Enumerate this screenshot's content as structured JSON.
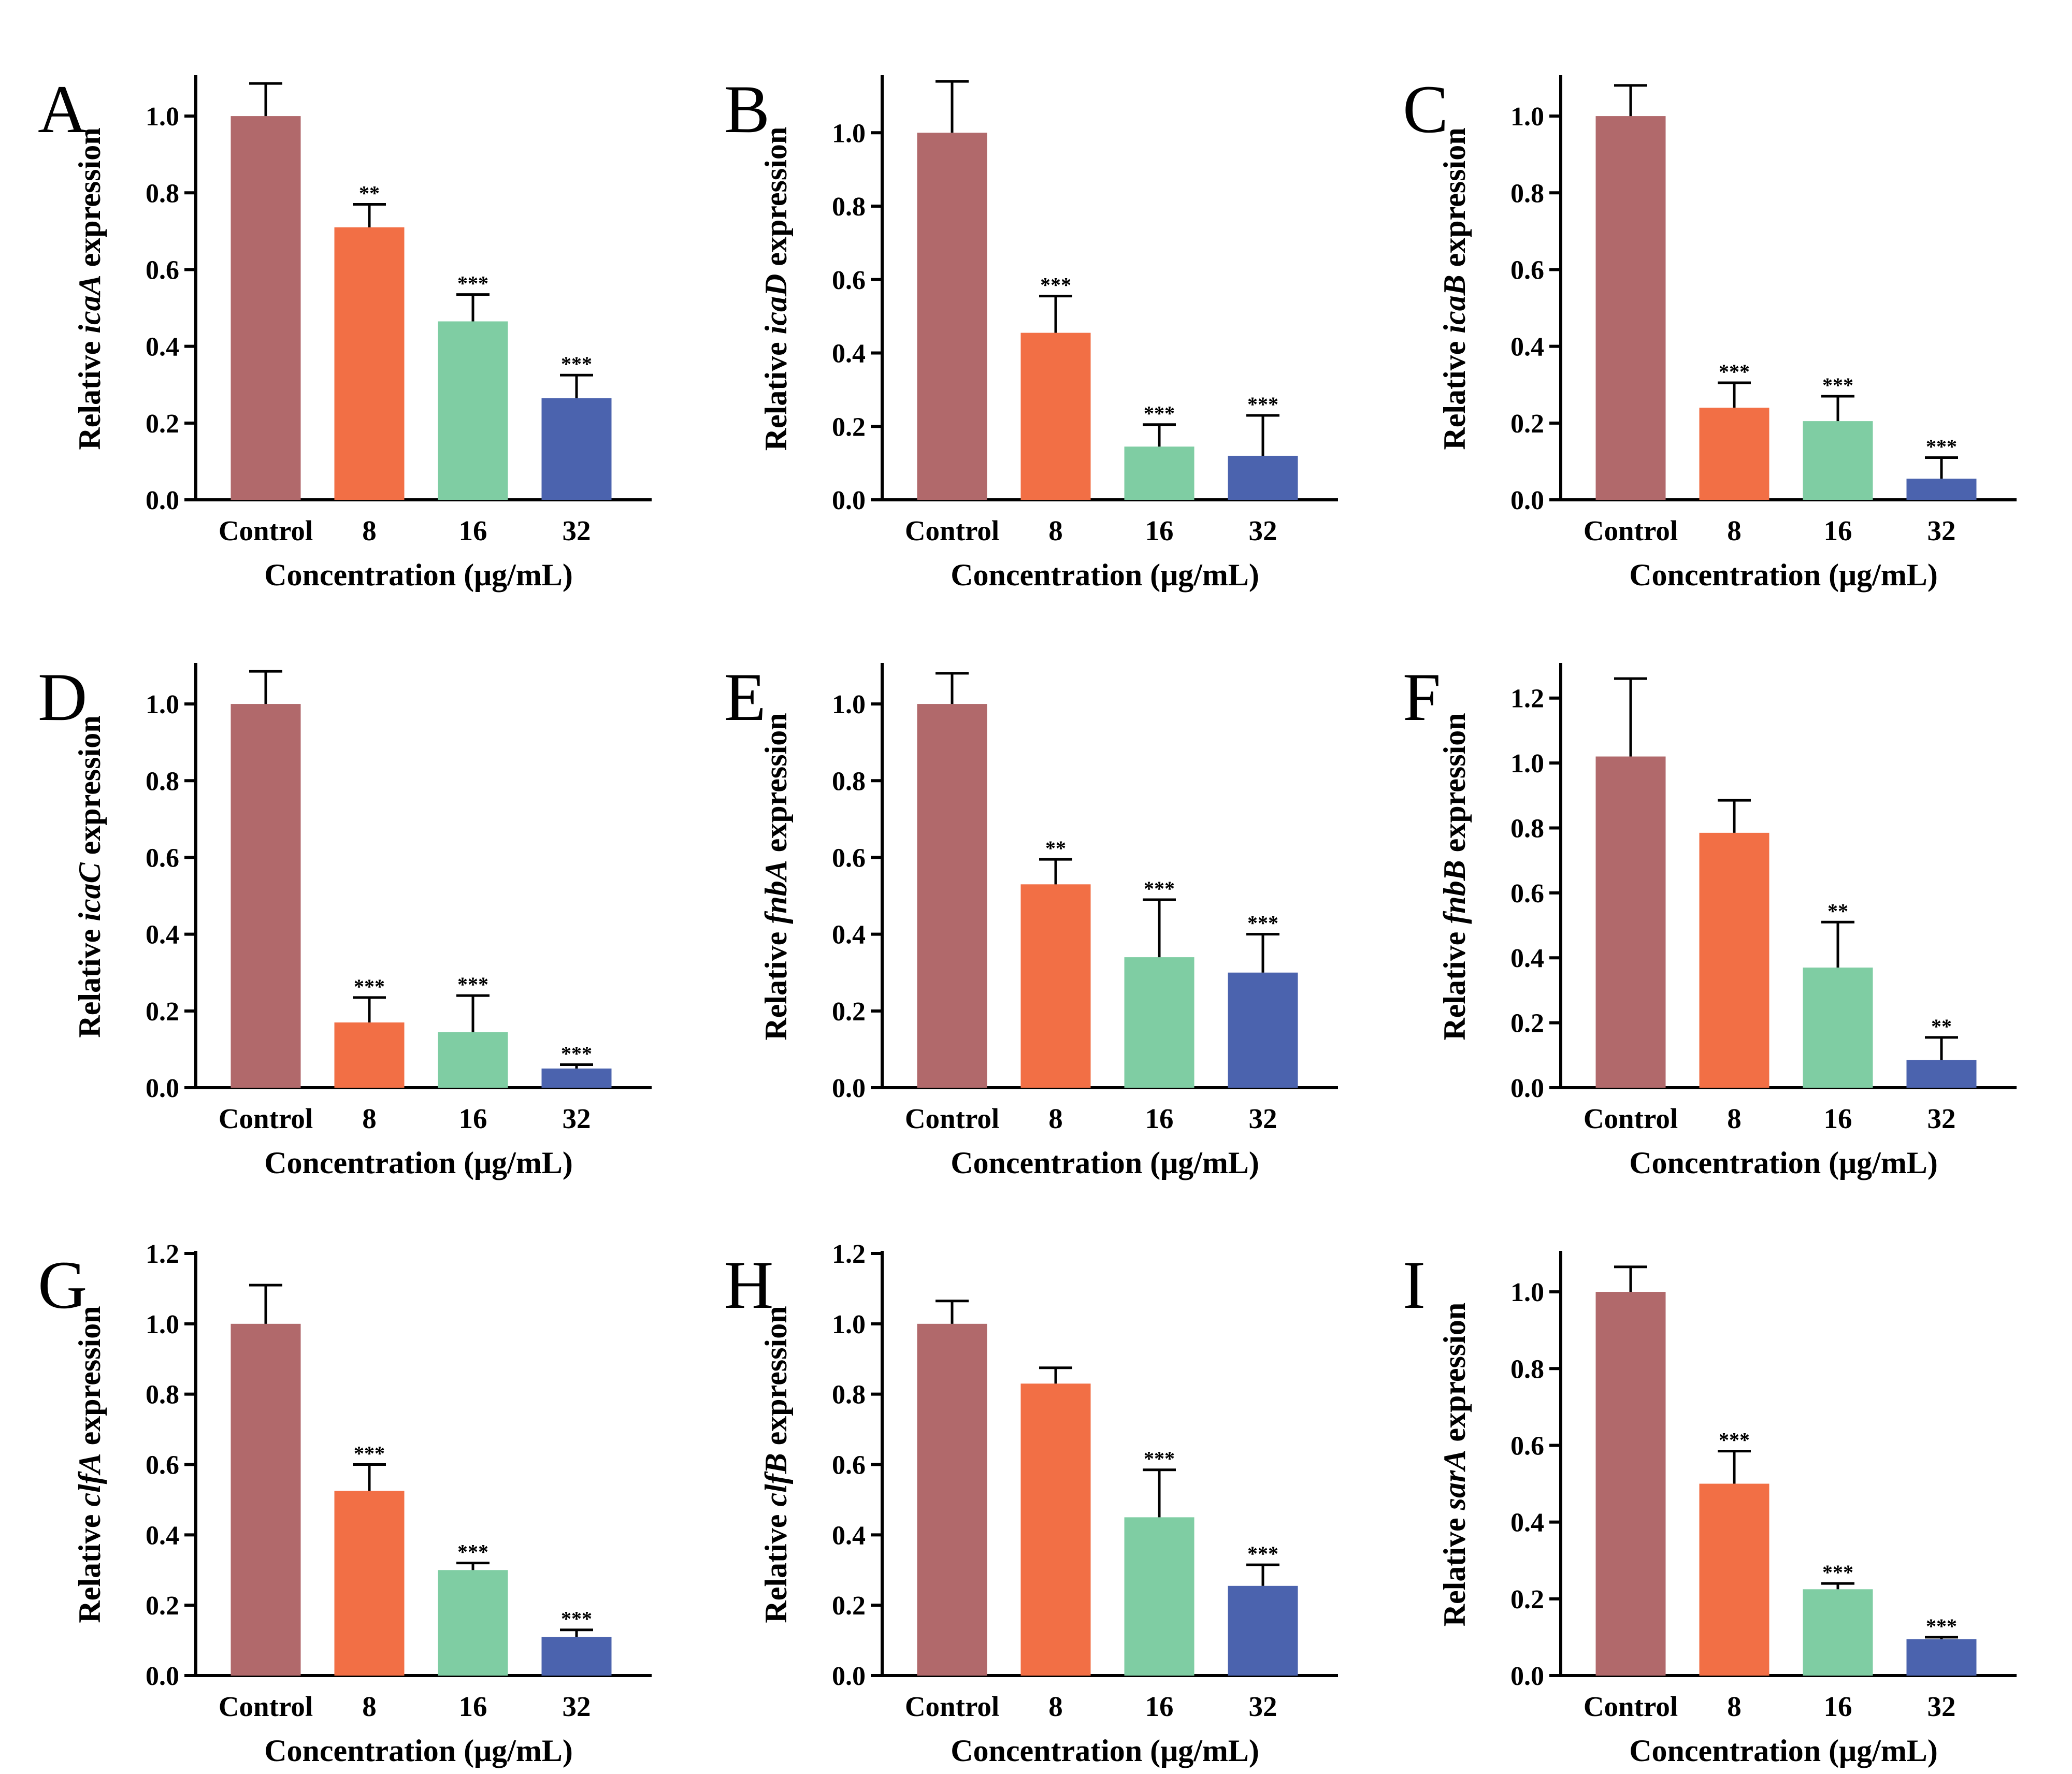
{
  "figure": {
    "ylabel_prefix": "Relative",
    "ylabel_suffix": "expression",
    "xlabel": "Concentration (μg/mL)",
    "categories": [
      "Control",
      "8",
      "16",
      "32"
    ],
    "colors": [
      "#B1696B",
      "#F26F45",
      "#7FCDA3",
      "#4B63AE"
    ]
  },
  "chart_data": [
    {
      "type": "bar",
      "panel": "A",
      "gene": "icaA",
      "categories": [
        "Control",
        "8",
        "16",
        "32"
      ],
      "values": [
        1.0,
        0.71,
        0.465,
        0.265
      ],
      "errors": [
        0.085,
        0.06,
        0.07,
        0.06
      ],
      "significance": [
        "",
        "**",
        "***",
        "***"
      ],
      "ylim": [
        0,
        1.1
      ],
      "yticks": [
        0.0,
        0.2,
        0.4,
        0.6,
        0.8,
        1.0
      ],
      "xlabel": "Concentration (μg/mL)",
      "ylabel": "Relative icaA expression"
    },
    {
      "type": "bar",
      "panel": "B",
      "gene": "icaD",
      "categories": [
        "Control",
        "8",
        "16",
        "32"
      ],
      "values": [
        1.0,
        0.455,
        0.145,
        0.12
      ],
      "errors": [
        0.14,
        0.1,
        0.06,
        0.11
      ],
      "significance": [
        "",
        "***",
        "***",
        "***"
      ],
      "ylim": [
        0,
        1.15
      ],
      "yticks": [
        0.0,
        0.2,
        0.4,
        0.6,
        0.8,
        1.0
      ],
      "xlabel": "Concentration (μg/mL)",
      "ylabel": "Relative icaD expression"
    },
    {
      "type": "bar",
      "panel": "C",
      "gene": "icaB",
      "categories": [
        "Control",
        "8",
        "16",
        "32"
      ],
      "values": [
        1.0,
        0.24,
        0.205,
        0.055
      ],
      "errors": [
        0.08,
        0.065,
        0.065,
        0.055
      ],
      "significance": [
        "",
        "***",
        "***",
        "***"
      ],
      "ylim": [
        0,
        1.1
      ],
      "yticks": [
        0.0,
        0.2,
        0.4,
        0.6,
        0.8,
        1.0
      ],
      "xlabel": "Concentration (μg/mL)",
      "ylabel": "Relative icaB expression"
    },
    {
      "type": "bar",
      "panel": "D",
      "gene": "icaC",
      "categories": [
        "Control",
        "8",
        "16",
        "32"
      ],
      "values": [
        1.0,
        0.17,
        0.145,
        0.05
      ],
      "errors": [
        0.085,
        0.065,
        0.095,
        0.01
      ],
      "significance": [
        "",
        "***",
        "***",
        "***"
      ],
      "ylim": [
        0,
        1.1
      ],
      "yticks": [
        0.0,
        0.2,
        0.4,
        0.6,
        0.8,
        1.0
      ],
      "xlabel": "Concentration (μg/mL)",
      "ylabel": "Relative icaC expression"
    },
    {
      "type": "bar",
      "panel": "E",
      "gene": "fnbA",
      "categories": [
        "Control",
        "8",
        "16",
        "32"
      ],
      "values": [
        1.0,
        0.53,
        0.34,
        0.3
      ],
      "errors": [
        0.08,
        0.065,
        0.15,
        0.1
      ],
      "significance": [
        "",
        "**",
        "***",
        "***"
      ],
      "ylim": [
        0,
        1.1
      ],
      "yticks": [
        0.0,
        0.2,
        0.4,
        0.6,
        0.8,
        1.0
      ],
      "xlabel": "Concentration (μg/mL)",
      "ylabel": "Relative fnbA expression"
    },
    {
      "type": "bar",
      "panel": "F",
      "gene": "fnbB",
      "categories": [
        "Control",
        "8",
        "16",
        "32"
      ],
      "values": [
        1.02,
        0.785,
        0.37,
        0.085
      ],
      "errors": [
        0.24,
        0.1,
        0.14,
        0.07
      ],
      "significance": [
        "",
        "",
        "**",
        "**"
      ],
      "ylim": [
        0,
        1.3
      ],
      "yticks": [
        0.0,
        0.2,
        0.4,
        0.6,
        0.8,
        1.0,
        1.2
      ],
      "xlabel": "Concentration (μg/mL)",
      "ylabel": "Relative fnbB expression"
    },
    {
      "type": "bar",
      "panel": "G",
      "gene": "clfA",
      "categories": [
        "Control",
        "8",
        "16",
        "32"
      ],
      "values": [
        1.0,
        0.525,
        0.3,
        0.11
      ],
      "errors": [
        0.11,
        0.075,
        0.02,
        0.02
      ],
      "significance": [
        "",
        "***",
        "***",
        "***"
      ],
      "ylim": [
        0,
        1.2
      ],
      "yticks": [
        0.0,
        0.2,
        0.4,
        0.6,
        0.8,
        1.0,
        1.2
      ],
      "xlabel": "Concentration (μg/mL)",
      "ylabel": "Relative clfA expression"
    },
    {
      "type": "bar",
      "panel": "H",
      "gene": "clfB",
      "categories": [
        "Control",
        "8",
        "16",
        "32"
      ],
      "values": [
        1.0,
        0.83,
        0.45,
        0.255
      ],
      "errors": [
        0.065,
        0.045,
        0.135,
        0.06
      ],
      "significance": [
        "",
        "",
        "***",
        "***"
      ],
      "ylim": [
        0,
        1.2
      ],
      "yticks": [
        0.0,
        0.2,
        0.4,
        0.6,
        0.8,
        1.0,
        1.2
      ],
      "xlabel": "Concentration (μg/mL)",
      "ylabel": "Relative clfB expression"
    },
    {
      "type": "bar",
      "panel": "I",
      "gene": "sarA",
      "categories": [
        "Control",
        "8",
        "16",
        "32"
      ],
      "values": [
        1.0,
        0.5,
        0.225,
        0.095
      ],
      "errors": [
        0.065,
        0.085,
        0.015,
        0.005
      ],
      "significance": [
        "",
        "***",
        "***",
        "***"
      ],
      "ylim": [
        0,
        1.1
      ],
      "yticks": [
        0.0,
        0.2,
        0.4,
        0.6,
        0.8,
        1.0
      ],
      "xlabel": "Concentration (μg/mL)",
      "ylabel": "Relative sarA expression"
    }
  ]
}
